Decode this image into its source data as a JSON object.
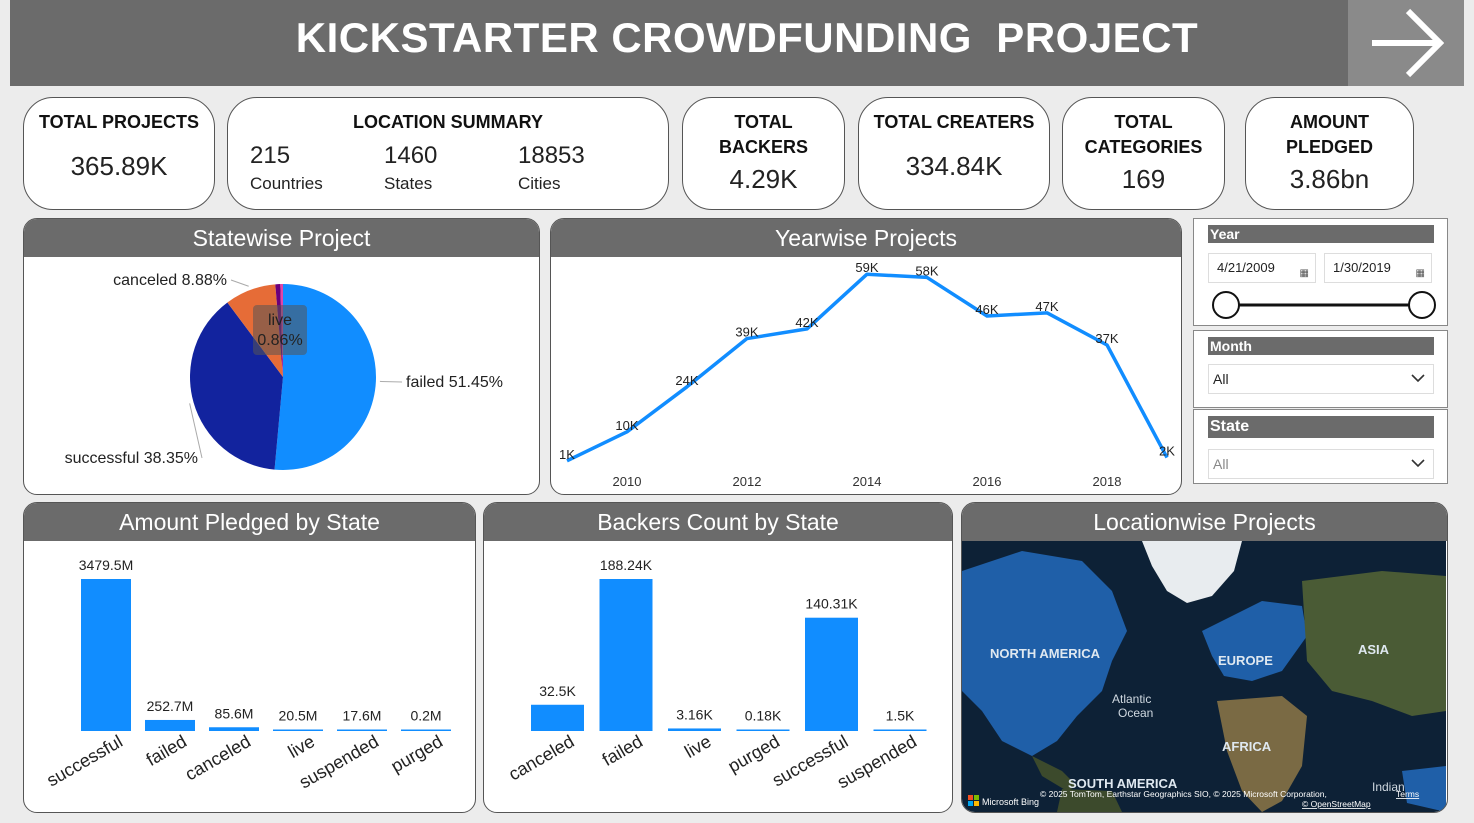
{
  "header": {
    "title": "KICKSTARTER CROWDFUNDING  PROJECT",
    "nav_icon": "arrow-right-icon"
  },
  "kpis": {
    "total_projects": {
      "label": "TOTAL PROJECTS",
      "value": "365.89K"
    },
    "location_summary": {
      "label": "LOCATION SUMMARY",
      "countries": {
        "value": "215",
        "unit": "Countries"
      },
      "states": {
        "value": "1460",
        "unit": "States"
      },
      "cities": {
        "value": "18853",
        "unit": "Cities"
      }
    },
    "total_backers": {
      "label1": "TOTAL",
      "label2": "BACKERS",
      "value": "4.29K"
    },
    "total_creators": {
      "label": "TOTAL CREATERS",
      "value": "334.84K"
    },
    "total_categories": {
      "label1": "TOTAL",
      "label2": "CATEGORIES",
      "value": "169"
    },
    "amount_pledged": {
      "label1": "AMOUNT",
      "label2": "PLEDGED",
      "value": "3.86bn"
    }
  },
  "panels": {
    "statewise": "Statewise Project",
    "yearwise": "Yearwise Projects",
    "pledged": "Amount Pledged by State",
    "backers": "Backers Count by State",
    "location": "Locationwise Projects"
  },
  "filters": {
    "year": {
      "label": "Year",
      "start": "4/21/2009",
      "end": "1/30/2019"
    },
    "month": {
      "label": "Month",
      "value": "All"
    },
    "state": {
      "label": "State",
      "value": "All"
    }
  },
  "map": {
    "labels": [
      "NORTH AMERICA",
      "EUROPE",
      "ASIA",
      "Atlantic",
      "Ocean",
      "AFRICA",
      "SOUTH AMERICA",
      "Indian"
    ],
    "attribution": "© 2025 TomTom, Earthstar Geographics SIO, © 2025 Microsoft Corporation,",
    "terms": "Terms",
    "osm": "© OpenStreetMap",
    "brand": "Microsoft Bing"
  },
  "chart_data": [
    {
      "type": "pie",
      "title": "Statewise Project",
      "slices": [
        {
          "label": "failed",
          "value": 51.45,
          "display": "failed 51.45%",
          "color": "#118dff"
        },
        {
          "label": "successful",
          "value": 38.35,
          "display": "successful 38.35%",
          "color": "#12239e"
        },
        {
          "label": "canceled",
          "value": 8.88,
          "display": "canceled 8.88%",
          "color": "#e66c37"
        },
        {
          "label": "live",
          "value": 0.86,
          "display": "live 0.86%",
          "color": "#6b007b"
        },
        {
          "label": "other",
          "value": 0.46,
          "color": "#e044a7"
        }
      ]
    },
    {
      "type": "line",
      "title": "Yearwise Projects",
      "x": [
        2009,
        2010,
        2011,
        2012,
        2013,
        2014,
        2015,
        2016,
        2017,
        2018,
        2019
      ],
      "values": [
        1,
        10,
        24,
        39,
        42,
        59,
        58,
        46,
        47,
        37,
        2
      ],
      "labels": [
        "1K",
        "10K",
        "24K",
        "39K",
        "42K",
        "59K",
        "58K",
        "46K",
        "47K",
        "37K",
        "2K"
      ],
      "xticks": [
        "2010",
        "2012",
        "2014",
        "2016",
        "2018"
      ],
      "color": "#118dff"
    },
    {
      "type": "bar",
      "title": "Amount Pledged by State",
      "categories": [
        "successful",
        "failed",
        "canceled",
        "live",
        "suspended",
        "purged"
      ],
      "values": [
        3479.5,
        252.7,
        85.6,
        20.5,
        17.6,
        0.2
      ],
      "labels": [
        "3479.5M",
        "252.7M",
        "85.6M",
        "20.5M",
        "17.6M",
        "0.2M"
      ],
      "color": "#118dff"
    },
    {
      "type": "bar",
      "title": "Backers Count by State",
      "categories": [
        "canceled",
        "failed",
        "live",
        "purged",
        "successful",
        "suspended"
      ],
      "values": [
        32.5,
        188.24,
        3.16,
        0.18,
        140.31,
        1.5
      ],
      "labels": [
        "32.5K",
        "188.24K",
        "3.16K",
        "0.18K",
        "140.31K",
        "1.5K"
      ],
      "color": "#118dff"
    }
  ]
}
